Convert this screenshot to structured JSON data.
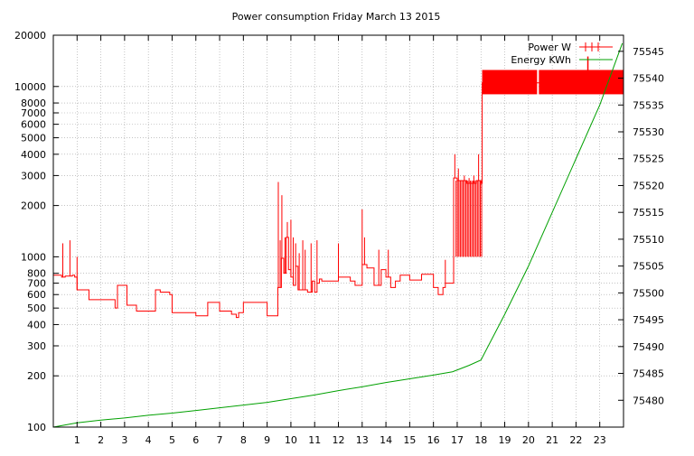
{
  "chart_data": {
    "type": "line",
    "title": "Power consumption Friday March 13 2015",
    "xlabel": "",
    "ylabel": "",
    "y2label": "",
    "grid": true,
    "legend_position": "top-right",
    "xlim": [
      0,
      24
    ],
    "x_ticks": [
      1,
      2,
      3,
      4,
      5,
      6,
      7,
      8,
      9,
      10,
      11,
      12,
      13,
      14,
      15,
      16,
      17,
      18,
      19,
      20,
      21,
      22,
      23
    ],
    "x_tick_labels": [
      "1",
      "2",
      "3",
      "4",
      "5",
      "6",
      "7",
      "8",
      "9",
      "10",
      "11",
      "12",
      "13",
      "14",
      "15",
      "16",
      "17",
      "18",
      "19",
      "20",
      "21",
      "22",
      "23"
    ],
    "ylim": [
      100,
      20000
    ],
    "y_scale": "log",
    "y_ticks": [
      100,
      200,
      300,
      400,
      500,
      600,
      700,
      800,
      1000,
      2000,
      3000,
      4000,
      5000,
      6000,
      7000,
      8000,
      10000,
      20000
    ],
    "y_tick_labels": [
      "100",
      "200",
      "300",
      "400",
      "500",
      "600",
      "700",
      "800",
      "1000",
      "2000",
      "3000",
      "4000",
      "5000",
      "6000",
      "7000",
      "8000",
      "10000",
      "20000"
    ],
    "y2lim": [
      75475,
      75548
    ],
    "y2_ticks": [
      75480,
      75485,
      75490,
      75495,
      75500,
      75505,
      75510,
      75515,
      75520,
      75525,
      75530,
      75535,
      75540,
      75545
    ],
    "y2_tick_labels": [
      "75480",
      "75485",
      "75490",
      "75495",
      "75500",
      "75505",
      "75510",
      "75515",
      "75520",
      "75525",
      "75530",
      "75535",
      "75540",
      "75545"
    ],
    "series": [
      {
        "name": "Power W",
        "axis": "y",
        "color": "#ff0000",
        "style": "steps",
        "x": [
          0,
          0.35,
          0.5,
          0.8,
          0.9,
          1.0,
          1.1,
          1.5,
          2.0,
          2.5,
          2.6,
          2.7,
          3.0,
          3.1,
          3.5,
          4.0,
          4.3,
          4.5,
          4.9,
          5.0,
          5.5,
          6.0,
          6.3,
          6.5,
          7.0,
          7.5,
          7.7,
          7.8,
          8.0,
          8.5,
          9.0,
          9.3,
          9.45,
          9.6,
          9.7,
          9.8,
          9.9,
          10.0,
          10.1,
          10.2,
          10.3,
          10.5,
          10.7,
          10.8,
          10.9,
          11.0,
          11.1,
          11.2,
          11.3,
          11.5,
          11.8,
          12.0,
          12.5,
          12.7,
          12.8,
          13.0,
          13.2,
          13.5,
          13.8,
          14.0,
          14.2,
          14.4,
          14.6,
          15.0,
          15.5,
          16.0,
          16.2,
          16.4,
          16.5,
          16.7,
          16.85,
          17.0,
          17.2,
          17.4,
          17.6,
          17.8,
          18.0,
          18.05,
          18.1,
          18.5,
          19.0,
          20.0,
          20.4,
          21.0,
          22.0,
          22.5,
          23.0,
          23.5,
          24.0
        ],
        "y": [
          780,
          760,
          770,
          780,
          760,
          640,
          640,
          560,
          560,
          560,
          500,
          680,
          680,
          520,
          480,
          480,
          640,
          620,
          600,
          470,
          470,
          450,
          450,
          540,
          480,
          460,
          440,
          470,
          540,
          540,
          450,
          450,
          660,
          980,
          800,
          1300,
          840,
          760,
          680,
          880,
          640,
          640,
          620,
          620,
          720,
          620,
          700,
          740,
          720,
          720,
          720,
          760,
          720,
          680,
          680,
          900,
          860,
          680,
          840,
          760,
          660,
          720,
          780,
          730,
          790,
          660,
          600,
          660,
          700,
          700,
          2900,
          2800,
          2800,
          2700,
          2700,
          2800,
          2700,
          10500,
          10500,
          10500,
          10500,
          10500,
          10500,
          10500,
          10500,
          10500,
          10500,
          10500,
          10500
        ],
        "spikes": [
          {
            "x": 0.4,
            "y": 1200
          },
          {
            "x": 0.7,
            "y": 1250
          },
          {
            "x": 1.0,
            "y": 1000
          },
          {
            "x": 9.47,
            "y": 2750
          },
          {
            "x": 9.55,
            "y": 1250
          },
          {
            "x": 9.62,
            "y": 2300
          },
          {
            "x": 9.75,
            "y": 1300
          },
          {
            "x": 9.85,
            "y": 1600
          },
          {
            "x": 10.0,
            "y": 1650
          },
          {
            "x": 10.1,
            "y": 1300
          },
          {
            "x": 10.2,
            "y": 1200
          },
          {
            "x": 10.35,
            "y": 1050
          },
          {
            "x": 10.5,
            "y": 1250
          },
          {
            "x": 10.6,
            "y": 1100
          },
          {
            "x": 10.85,
            "y": 1200
          },
          {
            "x": 11.1,
            "y": 1250
          },
          {
            "x": 12.0,
            "y": 1200
          },
          {
            "x": 13.0,
            "y": 1900
          },
          {
            "x": 13.1,
            "y": 1300
          },
          {
            "x": 13.7,
            "y": 1100
          },
          {
            "x": 14.1,
            "y": 1100
          },
          {
            "x": 16.5,
            "y": 960
          },
          {
            "x": 16.9,
            "y": 4000
          },
          {
            "x": 17.05,
            "y": 3300
          },
          {
            "x": 17.3,
            "y": 3000
          },
          {
            "x": 17.5,
            "y": 2900
          },
          {
            "x": 17.7,
            "y": 3000
          },
          {
            "x": 17.9,
            "y": 4000
          },
          {
            "x": 18.02,
            "y": 2800
          }
        ],
        "oscillation_band": {
          "x_from": 16.95,
          "x_to": 18.05,
          "low": 1000,
          "high": 2800
        },
        "saturated_band": {
          "x_from": 18.05,
          "x_to": 24.0,
          "low": 9000,
          "high": 12500,
          "gap_at": 20.4
        },
        "saturated_spikes": [
          {
            "x": 22.5,
            "y": 15000
          }
        ]
      },
      {
        "name": "Energy KWh",
        "axis": "y2",
        "color": "#00a000",
        "style": "line",
        "x": [
          0,
          1,
          2,
          3,
          4,
          5,
          6,
          7,
          8,
          9,
          10,
          11,
          12,
          13,
          14,
          15,
          16,
          16.8,
          17.5,
          18.0,
          19.0,
          20.0,
          21.0,
          22.0,
          23.0,
          23.95
        ],
        "y": [
          75475.0,
          75475.8,
          75476.3,
          75476.7,
          75477.2,
          75477.6,
          75478.1,
          75478.6,
          75479.1,
          75479.6,
          75480.3,
          75481.0,
          75481.8,
          75482.5,
          75483.3,
          75484.0,
          75484.7,
          75485.3,
          75486.5,
          75487.5,
          75496.0,
          75505.0,
          75515.0,
          75525.0,
          75535.0,
          75546.5
        ]
      }
    ]
  }
}
